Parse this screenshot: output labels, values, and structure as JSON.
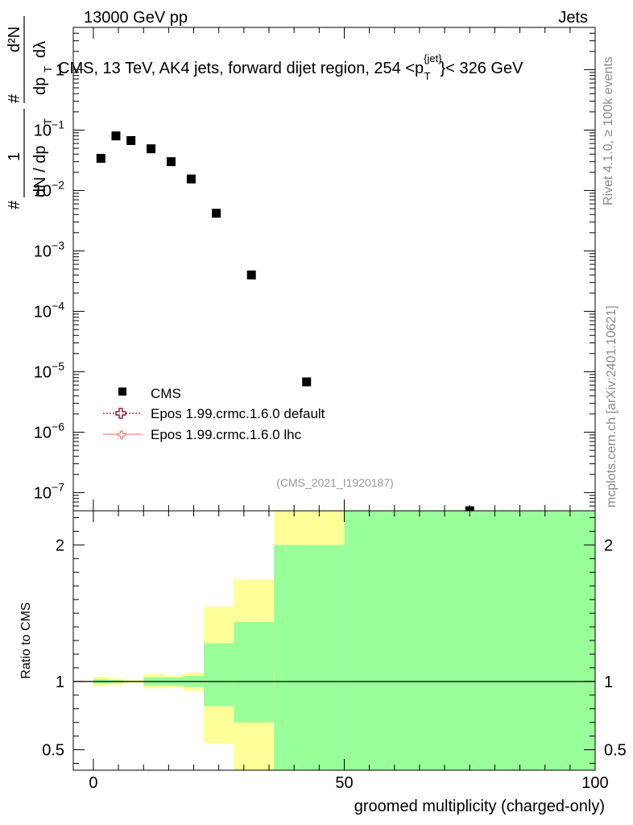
{
  "header": {
    "energy_label": "13000 GeV pp",
    "category_label": "Jets"
  },
  "side": {
    "rivet": "Rivet 4.1.0, ≥ 100k events",
    "mcplots": "mcplots.cern.ch [arXiv:2401.10621]"
  },
  "chart_data": [
    {
      "type": "scatter",
      "panel": "main",
      "title": "CMS, 13 TeV, AK4 jets, forward dijet region, 254 <p_T^{jet}< 326 GeV",
      "title_parts": {
        "pre": "CMS, 13 TeV, AK4 jets, forward dijet region, 254 <p",
        "sup": "{jet}",
        "sub": "T",
        "post": "}< 326 GeV"
      },
      "ylabel": "1/(dN/dp_T) d²N/(dp_T dλ)",
      "ylabel_parts": {
        "num_l": "1",
        "num_r": "d²N",
        "den_l": "dN / dp",
        "den_r": "dp",
        "sub": "T",
        "lambda": "dλ",
        "hash": "#"
      },
      "yscale": "log",
      "ylim": [
        5e-08,
        5
      ],
      "xlim": [
        -4,
        100
      ],
      "y_tick_labels": [
        {
          "v": 1e-07,
          "b": "10",
          "e": "−7"
        },
        {
          "v": 1e-06,
          "b": "10",
          "e": "−6"
        },
        {
          "v": 1e-05,
          "b": "10",
          "e": "−5"
        },
        {
          "v": 0.0001,
          "b": "10",
          "e": "−4"
        },
        {
          "v": 0.001,
          "b": "10",
          "e": "−3"
        },
        {
          "v": 0.01,
          "b": "10",
          "e": "−2"
        },
        {
          "v": 0.1,
          "b": "10",
          "e": "−1"
        },
        {
          "v": 1,
          "b": "1",
          "e": ""
        }
      ],
      "series": [
        {
          "name": "CMS",
          "marker": "square",
          "color": "#000000",
          "x": [
            1.5,
            4.5,
            7.5,
            11.5,
            15.5,
            19.5,
            24.5,
            31.5,
            42.5,
            75
          ],
          "y": [
            0.034,
            0.08,
            0.067,
            0.049,
            0.03,
            0.0155,
            0.0042,
            0.0004,
            6.8e-06,
            5e-08
          ]
        }
      ],
      "legend": {
        "placement": "bottom-left",
        "entries": [
          {
            "label": "CMS",
            "style": "square",
            "color": "#000000"
          },
          {
            "label": "Epos 1.99.crmc.1.6.0 default",
            "style": "open-cross-dotted",
            "color": "#8b1a3a"
          },
          {
            "label": "Epos 1.99.crmc.1.6.0 lhc",
            "style": "open-cross-solid",
            "color": "#f08080"
          }
        ]
      },
      "watermark": "(CMS_2021_I1920187)"
    },
    {
      "type": "area",
      "panel": "ratio",
      "ylabel": "Ratio to CMS",
      "xlabel": "groomed multiplicity (charged-only)",
      "xlim": [
        -4,
        100
      ],
      "ylim": [
        0.35,
        2.25
      ],
      "x_ticks": [
        0,
        50,
        100
      ],
      "y_ticks": [
        0.5,
        1,
        2
      ],
      "y_tick_labels": [
        "0.5",
        "1",
        "2"
      ],
      "reference_line": 1,
      "bands": [
        {
          "x0": 0,
          "x1": 3,
          "stat_lo": 0.985,
          "stat_hi": 1.015,
          "tot_lo": 0.965,
          "tot_hi": 1.035
        },
        {
          "x0": 3,
          "x1": 6,
          "stat_lo": 0.99,
          "stat_hi": 1.01,
          "tot_lo": 0.975,
          "tot_hi": 1.025
        },
        {
          "x0": 6,
          "x1": 10,
          "stat_lo": 0.995,
          "stat_hi": 1.005,
          "tot_lo": 0.99,
          "tot_hi": 1.01
        },
        {
          "x0": 10,
          "x1": 14,
          "stat_lo": 0.97,
          "stat_hi": 1.03,
          "tot_lo": 0.95,
          "tot_hi": 1.055
        },
        {
          "x0": 14,
          "x1": 18,
          "stat_lo": 0.97,
          "stat_hi": 1.03,
          "tot_lo": 0.955,
          "tot_hi": 1.045
        },
        {
          "x0": 18,
          "x1": 22,
          "stat_lo": 0.96,
          "stat_hi": 1.04,
          "tot_lo": 0.93,
          "tot_hi": 1.065
        },
        {
          "x0": 22,
          "x1": 28,
          "stat_lo": 0.82,
          "stat_hi": 1.28,
          "tot_lo": 0.545,
          "tot_hi": 1.55
        },
        {
          "x0": 28,
          "x1": 36,
          "stat_lo": 0.7,
          "stat_hi": 1.435,
          "tot_lo": 0.35,
          "tot_hi": 1.745
        },
        {
          "x0": 36,
          "x1": 50,
          "stat_lo": 0.35,
          "stat_hi": 2.0,
          "tot_lo": 0.35,
          "tot_hi": 2.25
        },
        {
          "x0": 50,
          "x1": 100,
          "stat_lo": 0.35,
          "stat_hi": 2.25,
          "tot_lo": 0.35,
          "tot_hi": 2.25
        }
      ],
      "colors": {
        "stat": "#99ff99",
        "total": "#ffff99",
        "line": "#000000"
      }
    }
  ]
}
